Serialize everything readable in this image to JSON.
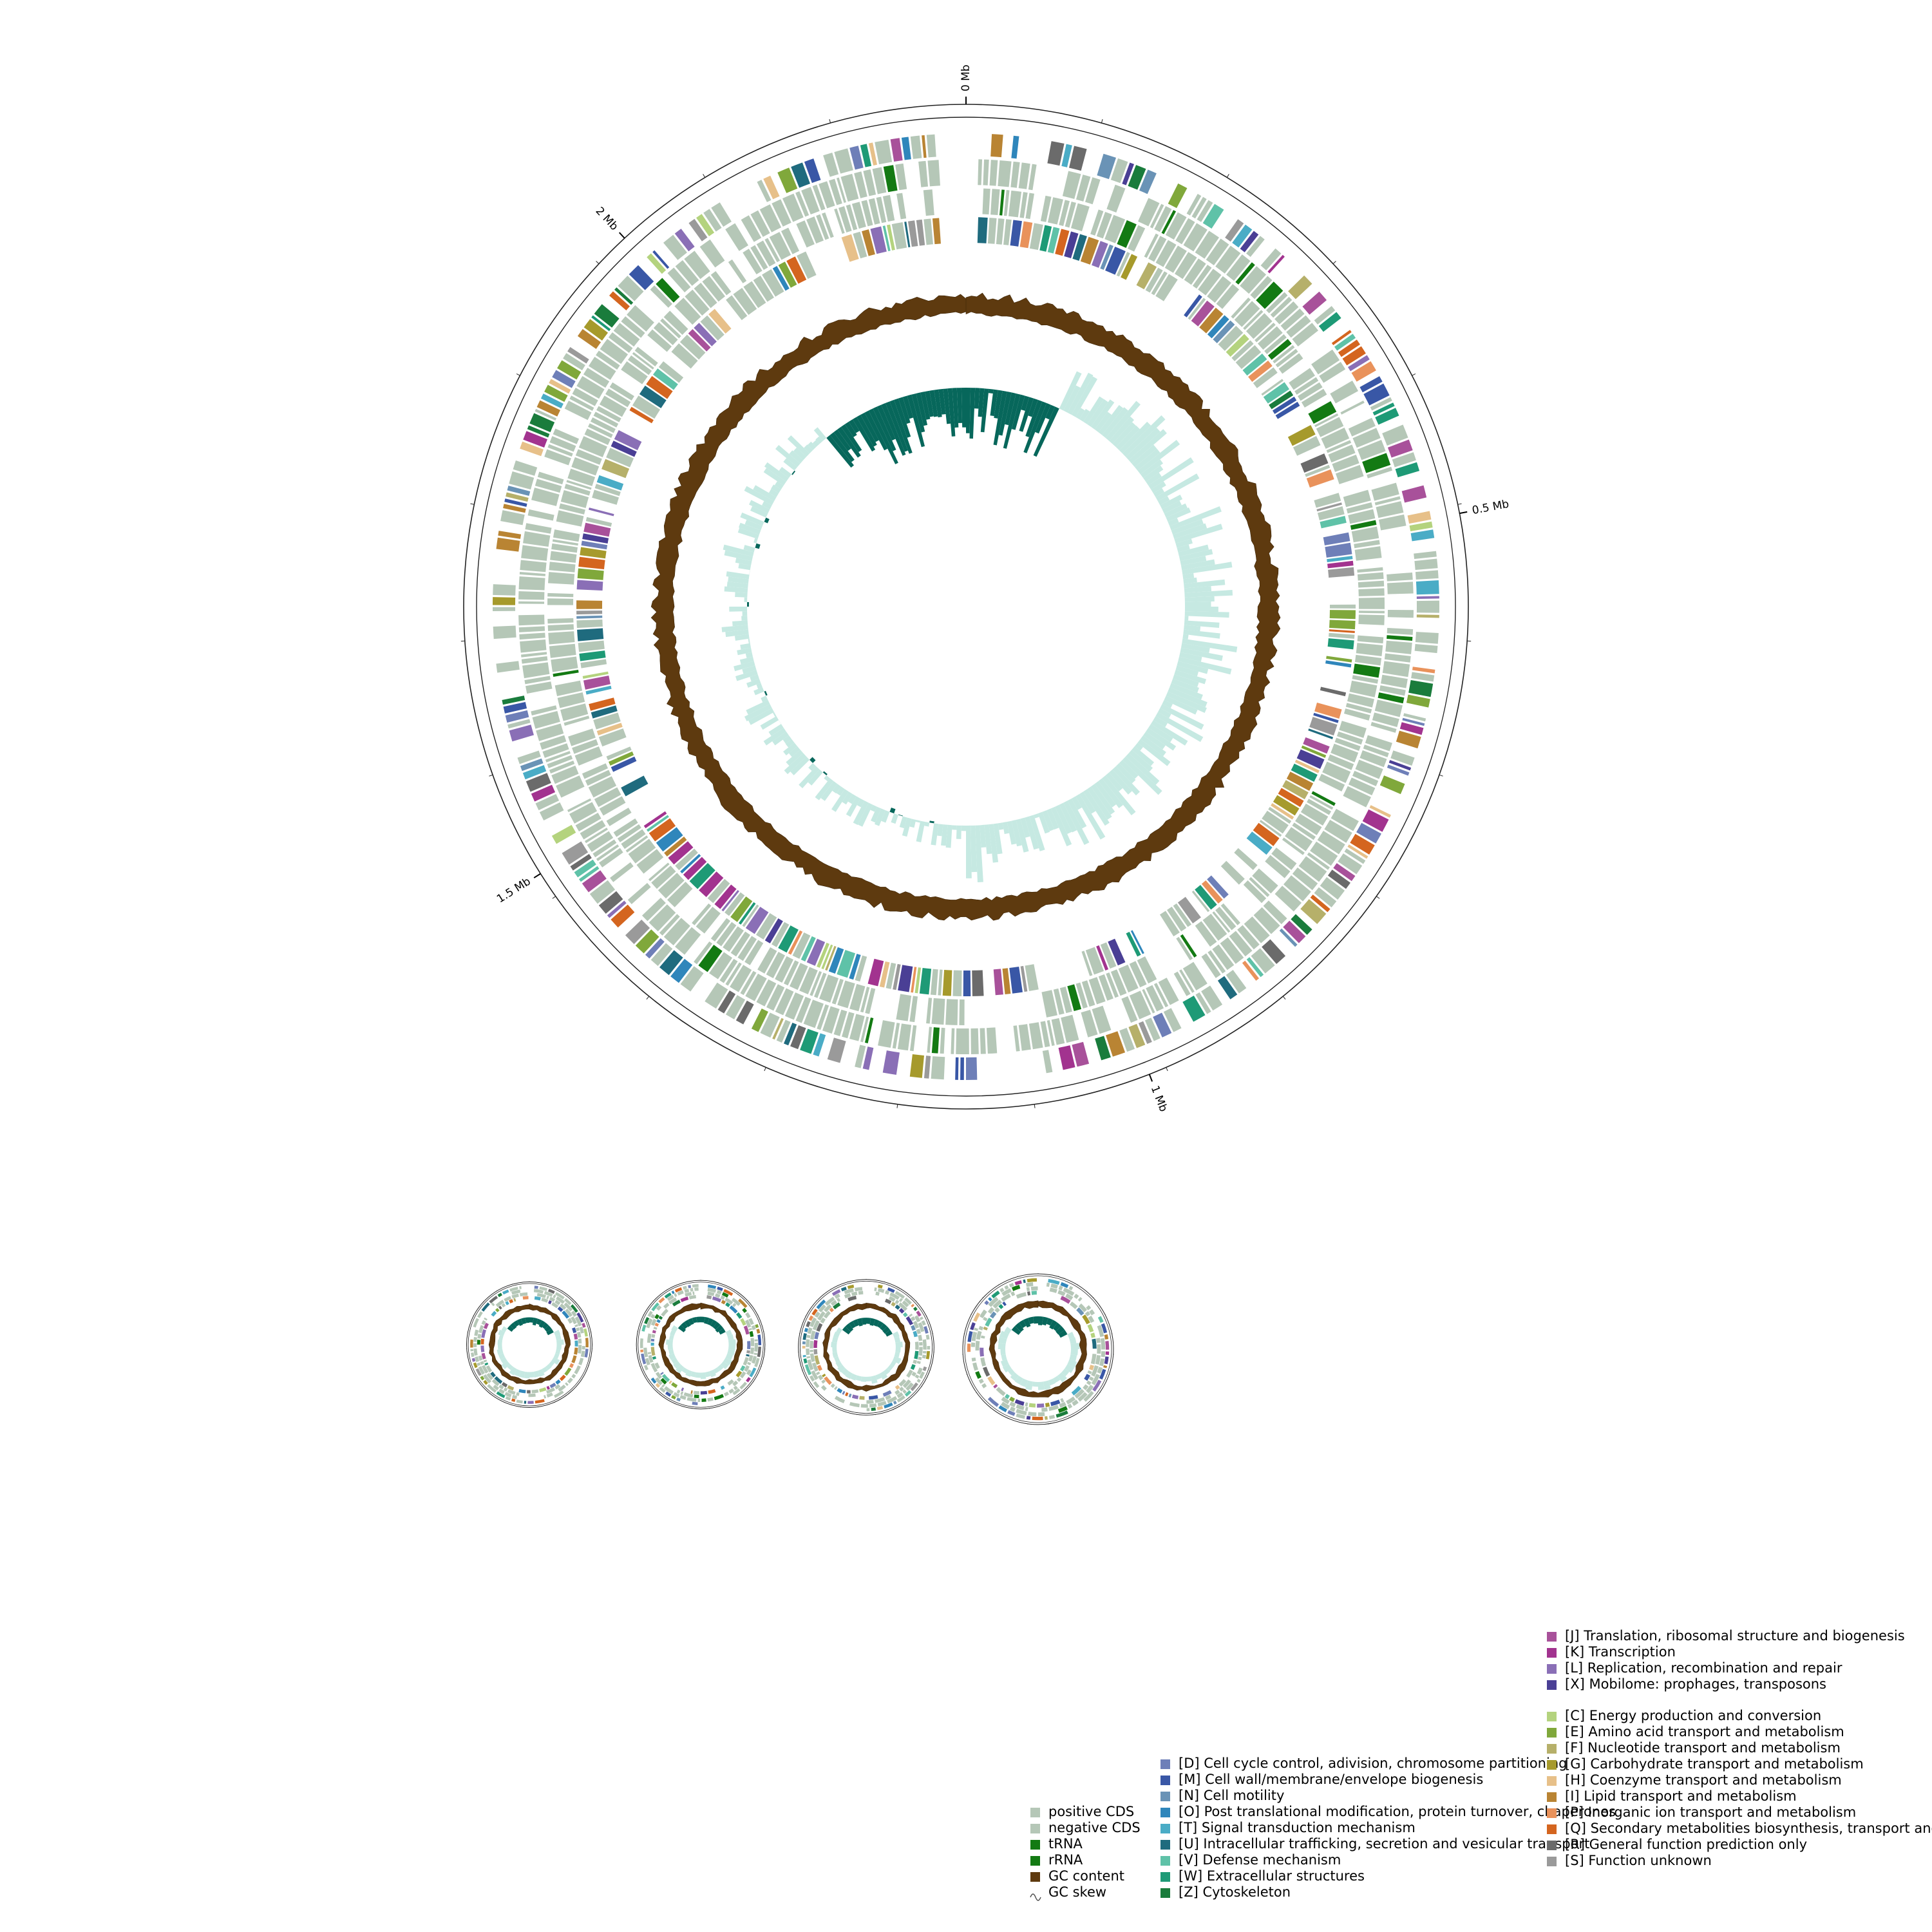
{
  "main_map": {
    "tick_labels": [
      "0 Mb",
      "0.5 Mb",
      "1 Mb",
      "1.5 Mb",
      "2 Mb"
    ],
    "tick_positions_mb": [
      0,
      0.5,
      1,
      1.5,
      2
    ],
    "genome_length_mb": 2.27
  },
  "plasmid_maps_count": 4,
  "legend": {
    "features": [
      {
        "label": "positive CDS",
        "color": "#b5c7b7",
        "marker": "square"
      },
      {
        "label": "negative CDS",
        "color": "#b5c7b7",
        "marker": "square"
      },
      {
        "label": "tRNA",
        "color": "#137a13",
        "marker": "square"
      },
      {
        "label": "rRNA",
        "color": "#137a13",
        "marker": "square"
      },
      {
        "label": "GC content",
        "color": "#5e3a0f",
        "marker": "square"
      },
      {
        "label": "GC skew",
        "color": "#4a4a4a",
        "marker": "wave"
      }
    ],
    "cog_cellular": [
      {
        "label": "[D] Cell cycle control, adivision, chromosome partitioning",
        "color": "#6e7fb8"
      },
      {
        "label": "[M] Cell wall/membrane/envelope biogenesis",
        "color": "#3957a6"
      },
      {
        "label": "[N] Cell motility",
        "color": "#6a93b6"
      },
      {
        "label": "[O] Post translational modification, protein turnover, chaperones",
        "color": "#2f86bb"
      },
      {
        "label": "[T] Signal transduction mechanism",
        "color": "#4aacc6"
      },
      {
        "label": "[U] Intracellular trafficking, secretion and vesicular transport",
        "color": "#1f6b7e"
      },
      {
        "label": "[V] Defense mechanism",
        "color": "#5fc2a8"
      },
      {
        "label": "[W] Extracellular structures",
        "color": "#1e9a76"
      },
      {
        "label": "[Z] Cytoskeleton",
        "color": "#1a7c3c"
      }
    ],
    "cog_information": [
      {
        "label": "[J] Translation, ribosomal structure and biogenesis",
        "color": "#a8519a"
      },
      {
        "label": "[K] Transcription",
        "color": "#a2338f"
      },
      {
        "label": "[L] Replication, recombination and repair",
        "color": "#8a6fb6"
      },
      {
        "label": "[X] Mobilome: prophages, transposons",
        "color": "#4a3f95"
      }
    ],
    "cog_metabolism": [
      {
        "label": "[C] Energy production and conversion",
        "color": "#b4d37e"
      },
      {
        "label": "[E] Amino acid transport and metabolism",
        "color": "#80a83b"
      },
      {
        "label": "[F] Nucleotide transport and metabolism",
        "color": "#b6b06a"
      },
      {
        "label": "[G] Carbohydrate transport and metabolism",
        "color": "#a69a2c"
      },
      {
        "label": "[H] Coenzyme transport and metabolism",
        "color": "#e7c089"
      },
      {
        "label": "[I] Lipid transport and metabolism",
        "color": "#b98433"
      },
      {
        "label": "[P] Inorganic ion transport and metabolism",
        "color": "#e9925b"
      },
      {
        "label": "[Q] Secondary metabolities biosynthesis, transport and catabolism",
        "color": "#d4651f"
      },
      {
        "label": "[R] General function prediction only",
        "color": "#6b6b6b"
      },
      {
        "label": "[S] Function unknown",
        "color": "#9a9a9a"
      }
    ]
  }
}
